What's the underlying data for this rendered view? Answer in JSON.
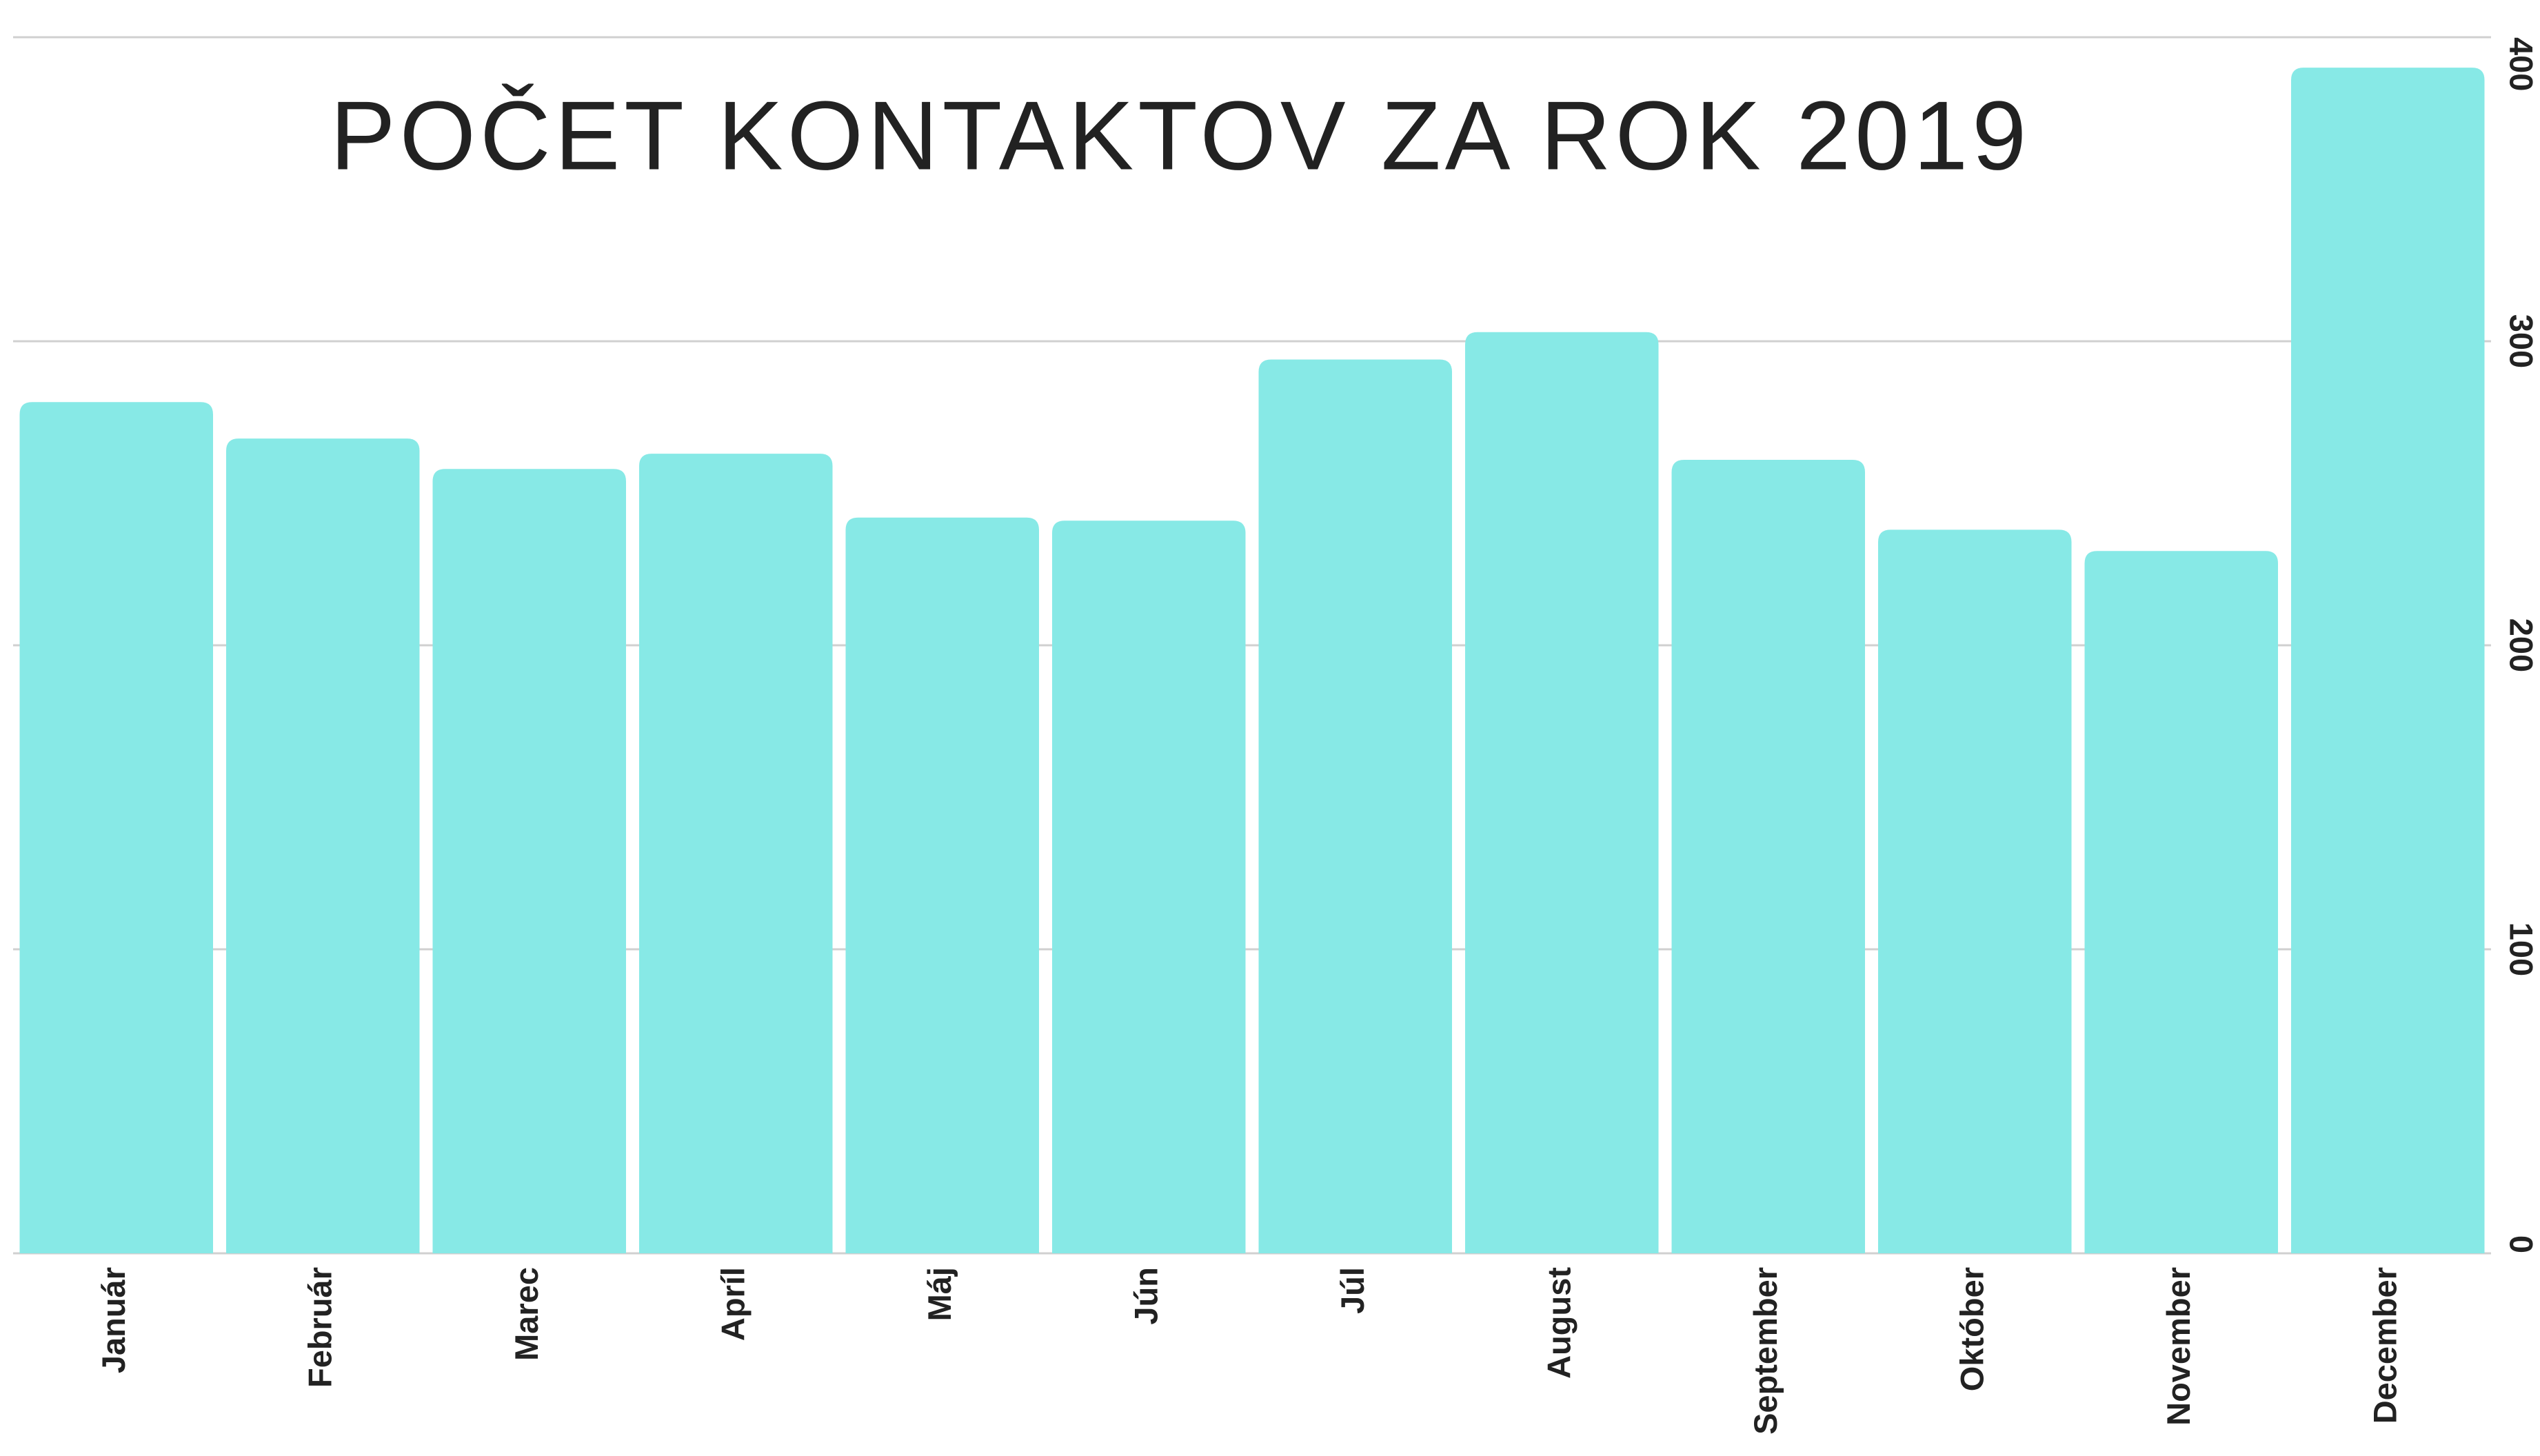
{
  "chart_data": {
    "type": "bar",
    "title": "POČET KONTAKTOV ZA ROK 2019",
    "categories": [
      "Január",
      "Február",
      "Marec",
      "Apríl",
      "Máj",
      "Jún",
      "Júl",
      "August",
      "September",
      "Október",
      "November",
      "December"
    ],
    "values": [
      280,
      268,
      258,
      263,
      242,
      241,
      294,
      303,
      261,
      238,
      231,
      390
    ],
    "color": "#87e9e6",
    "ylim": [
      0,
      400
    ],
    "yticks": [
      0,
      100,
      200,
      300,
      400
    ],
    "grid": true,
    "y_axis_side": "right"
  }
}
